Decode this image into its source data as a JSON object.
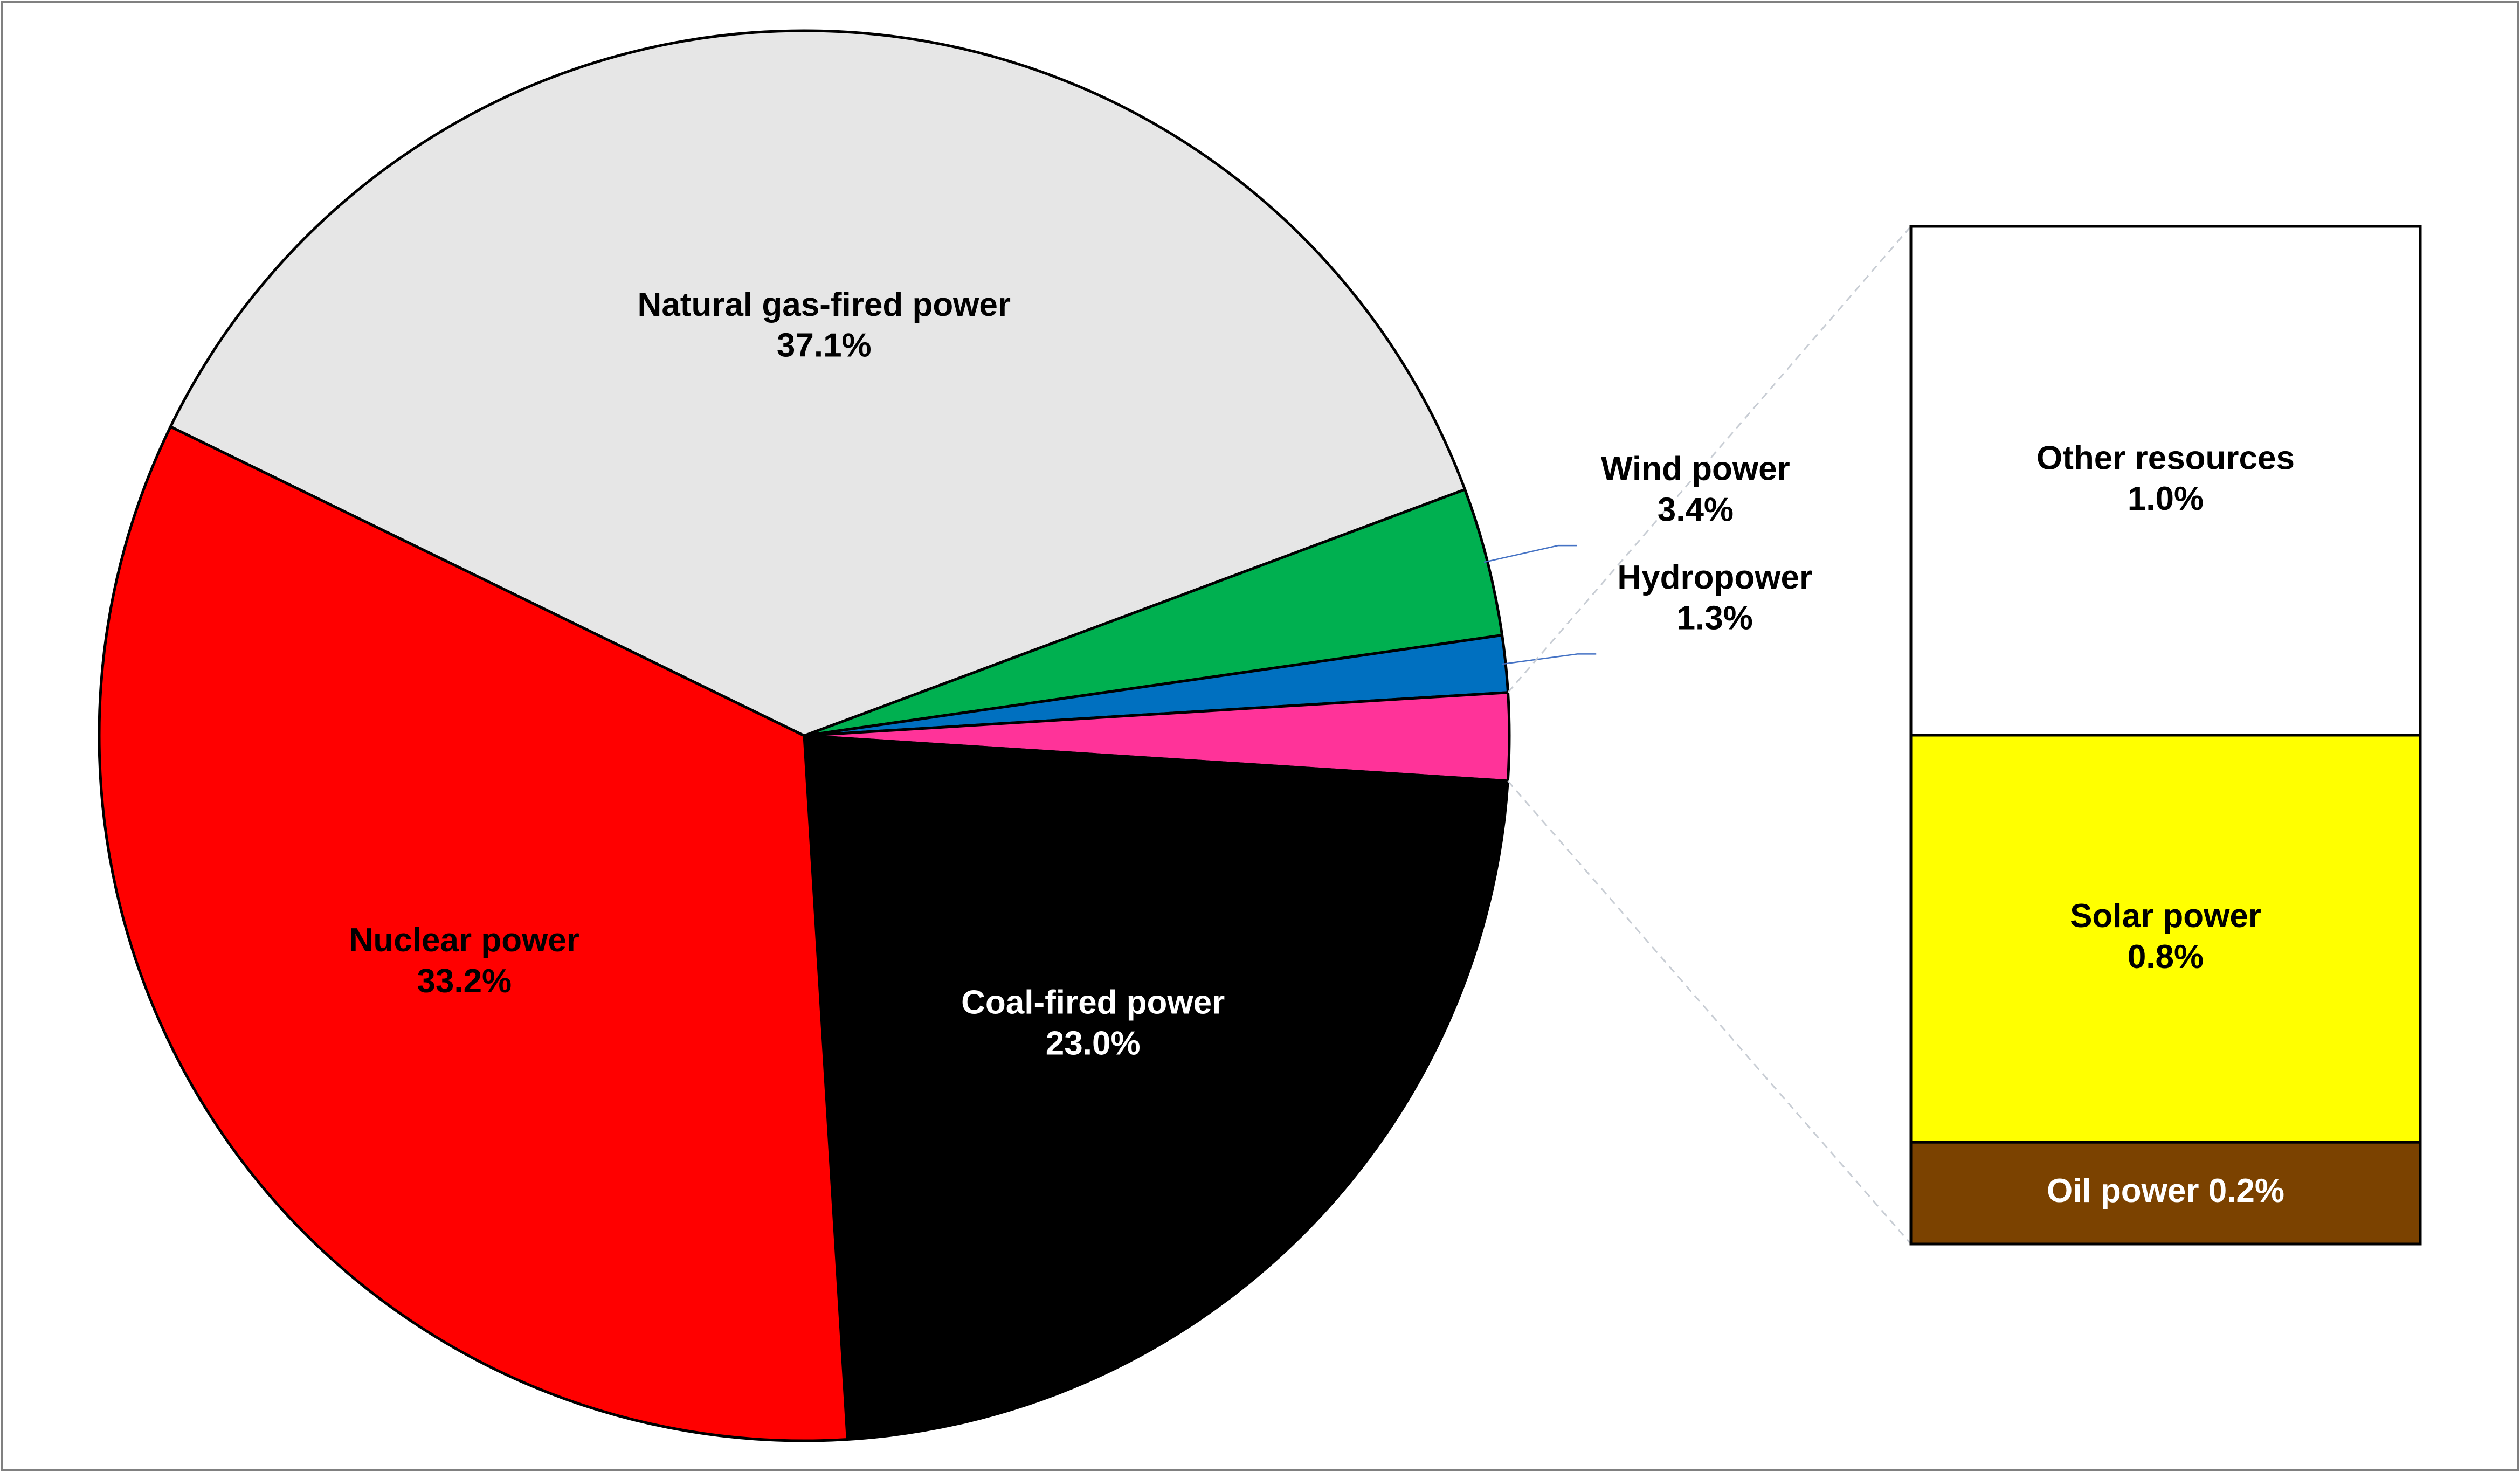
{
  "chart_data": {
    "type": "pie",
    "title": "",
    "unit": "%",
    "slices": [
      {
        "name": "Natural gas-fired power",
        "value": 37.1,
        "label": "37.1%",
        "color": "#E6E6E6",
        "text_color": "#000000"
      },
      {
        "name": "Wind power",
        "value": 3.4,
        "label": "3.4%",
        "color": "#00B050",
        "text_color": "#000000"
      },
      {
        "name": "Hydropower",
        "value": 1.3,
        "label": "1.3%",
        "color": "#0070C0",
        "text_color": "#000000"
      },
      {
        "name": "Other resources, Solar power, Oil power (combined)",
        "value": 2.0,
        "label": "",
        "color": "#FF3399",
        "text_color": "#000000"
      },
      {
        "name": "Coal-fired power",
        "value": 23.0,
        "label": "23.0%",
        "color": "#000000",
        "text_color": "#FFFFFF"
      },
      {
        "name": "Nuclear power",
        "value": 33.2,
        "label": "33.2%",
        "color": "#FF0000",
        "text_color": "#000000"
      }
    ],
    "breakout": {
      "type": "stacked-bar",
      "segments": [
        {
          "name": "Other resources",
          "value": 1.0,
          "label": "1.0%",
          "color": "#FFFFFF",
          "text_color": "#000000"
        },
        {
          "name": "Solar power",
          "value": 0.8,
          "label": "0.8%",
          "color": "#FFFF00",
          "text_color": "#000000"
        },
        {
          "name": "Oil power",
          "value": 0.2,
          "label": "0.2%",
          "color": "#7B4200",
          "text_color": "#FFFFFF"
        }
      ]
    }
  }
}
